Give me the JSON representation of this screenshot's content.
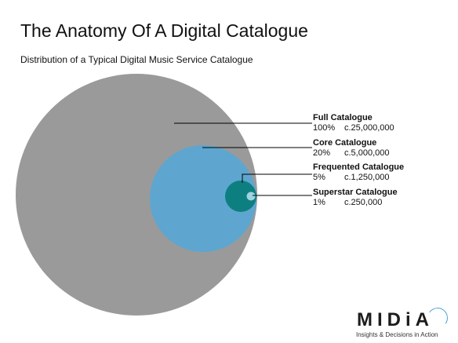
{
  "title": "The Anatomy Of A Digital Catalogue",
  "subtitle": "Distribution of a Typical Digital Music Service Catalogue",
  "segments": [
    {
      "name": "Full Catalogue",
      "percent": "100%",
      "count": "c.25,000,000",
      "share": 1.0,
      "color": "#9a9a9a"
    },
    {
      "name": "Core Catalogue",
      "percent": "20%",
      "count": "c.5,000,000",
      "share": 0.2,
      "color": "#5ea6cf"
    },
    {
      "name": "Frequented Catalogue",
      "percent": "5%",
      "count": "c.1,250,000",
      "share": 0.05,
      "color": "#0e7f80"
    },
    {
      "name": "Superstar Catalogue",
      "percent": "1%",
      "count": "c.250,000",
      "share": 0.01,
      "color": "#9fd3e0"
    }
  ],
  "logo": {
    "text": "MIDiA",
    "tagline": "Insights & Decisions in Action",
    "accent": "#4aa3d3"
  }
}
